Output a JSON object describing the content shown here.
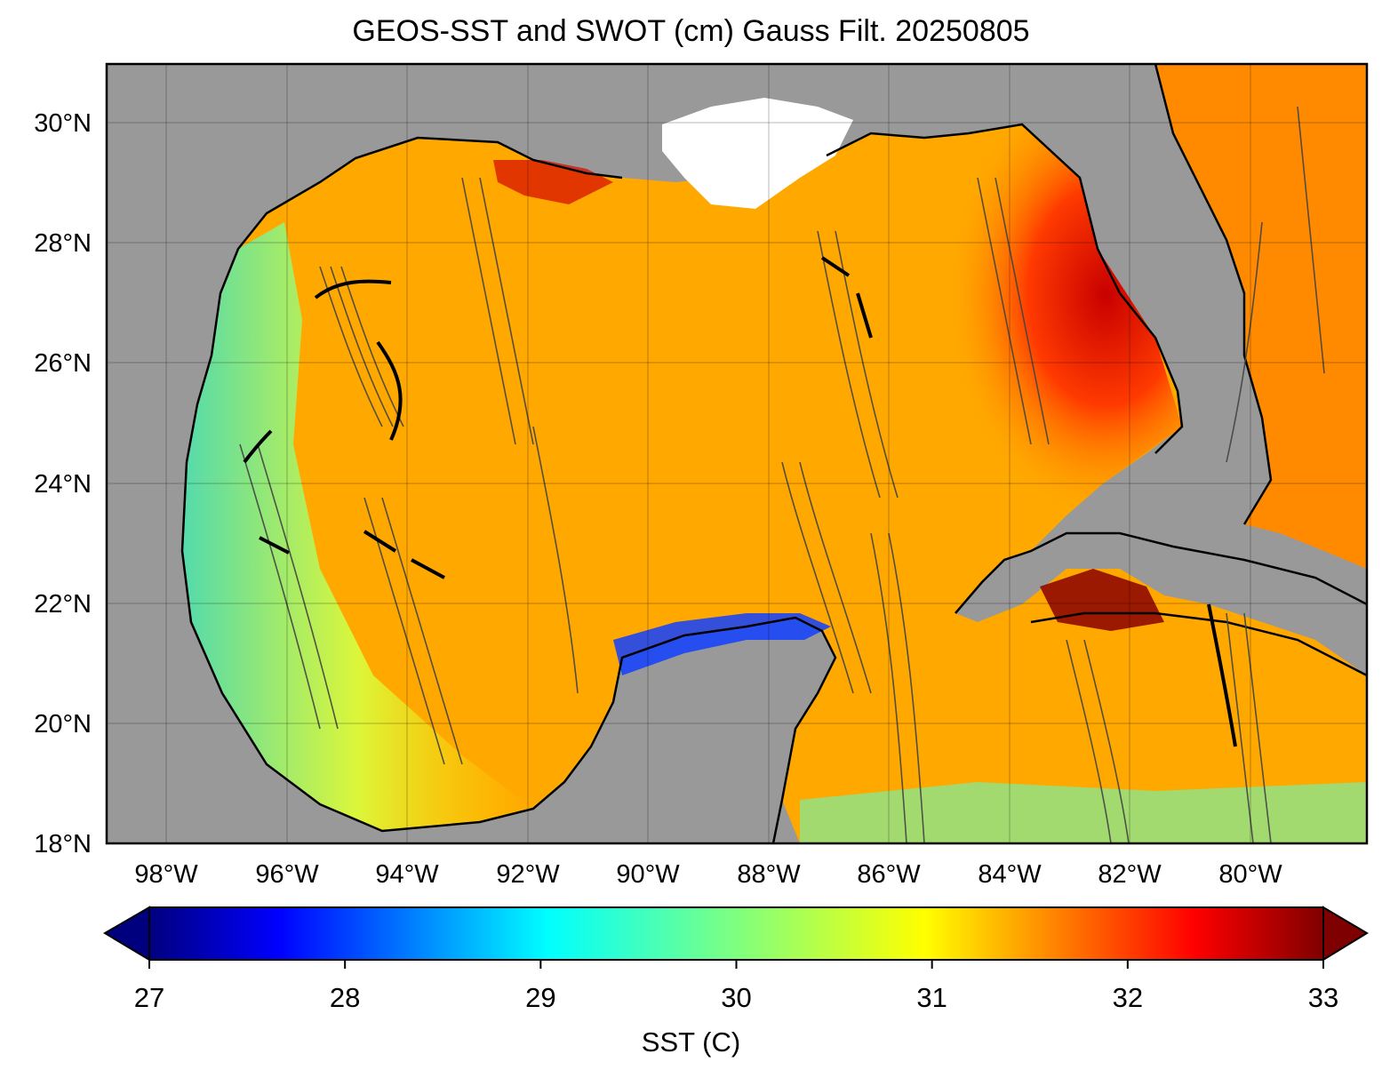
{
  "title": "GEOS-SST  and SWOT (cm) Gauss Filt. 20250805",
  "map": {
    "lat_ticks": [
      "30°N",
      "28°N",
      "26°N",
      "24°N",
      "22°N",
      "20°N",
      "18°N"
    ],
    "lon_ticks": [
      "98°W",
      "96°W",
      "94°W",
      "92°W",
      "90°W",
      "88°W",
      "86°W",
      "84°W",
      "82°W",
      "80°W"
    ],
    "land_color": "#999999",
    "grid": true
  },
  "colorbar": {
    "label": "SST (C)",
    "ticks": [
      "27",
      "28",
      "29",
      "30",
      "31",
      "32",
      "33"
    ],
    "min": 27,
    "max": 33,
    "colormap": "jet",
    "extend": "both"
  }
}
